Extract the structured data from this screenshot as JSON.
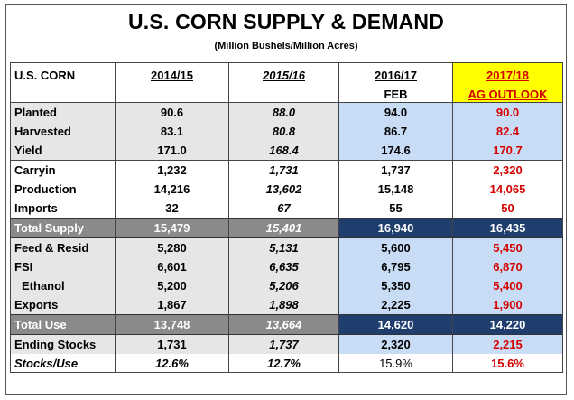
{
  "title": "U.S. CORN SUPPLY & DEMAND",
  "subtitle": "(Million Bushels/Million Acres)",
  "header": {
    "label": "U.S. CORN",
    "col1": "2014/15",
    "col2": "2015/16",
    "col3": "2016/17",
    "col3_sub": "FEB",
    "col4": "2017/18",
    "col4_sub": "AG OUTLOOK"
  },
  "rows": [
    {
      "label": "Planted",
      "v1": "90.6",
      "v2": "88.0",
      "v3": "94.0",
      "v4": "90.0"
    },
    {
      "label": "Harvested",
      "v1": "83.1",
      "v2": "80.8",
      "v3": "86.7",
      "v4": "82.4"
    },
    {
      "label": "Yield",
      "v1": "171.0",
      "v2": "168.4",
      "v3": "174.6",
      "v4": "170.7"
    },
    {
      "label": "Carryin",
      "v1": "1,232",
      "v2": "1,731",
      "v3": "1,737",
      "v4": "2,320"
    },
    {
      "label": "Production",
      "v1": "14,216",
      "v2": "13,602",
      "v3": "15,148",
      "v4": "14,065"
    },
    {
      "label": "Imports",
      "v1": "32",
      "v2": "67",
      "v3": "55",
      "v4": "50"
    },
    {
      "label": "Total Supply",
      "v1": "15,479",
      "v2": "15,401",
      "v3": "16,940",
      "v4": "16,435"
    },
    {
      "label": "Feed & Resid",
      "v1": "5,280",
      "v2": "5,131",
      "v3": "5,600",
      "v4": "5,450"
    },
    {
      "label": "FSI",
      "v1": "6,601",
      "v2": "6,635",
      "v3": "6,795",
      "v4": "6,870"
    },
    {
      "label": "Ethanol",
      "v1": "5,200",
      "v2": "5,206",
      "v3": "5,350",
      "v4": "5,400"
    },
    {
      "label": "Exports",
      "v1": "1,867",
      "v2": "1,898",
      "v3": "2,225",
      "v4": "1,900"
    },
    {
      "label": "Total Use",
      "v1": "13,748",
      "v2": "13,664",
      "v3": "14,620",
      "v4": "14,220"
    },
    {
      "label": "Ending Stocks",
      "v1": "1,731",
      "v2": "1,737",
      "v3": "2,320",
      "v4": "2,215"
    },
    {
      "label": "Stocks/Use",
      "v1": "12.6%",
      "v2": "12.7%",
      "v3": "15.9%",
      "v4": "15.6%"
    }
  ],
  "colors": {
    "forecast_text": "#d40000",
    "highlight_header": "#ffff00",
    "light_blue": "#c9dcf5",
    "dark_blue": "#1f3e6e",
    "total_grey": "#8a8a8a",
    "row_grey": "#e6e6e6"
  }
}
